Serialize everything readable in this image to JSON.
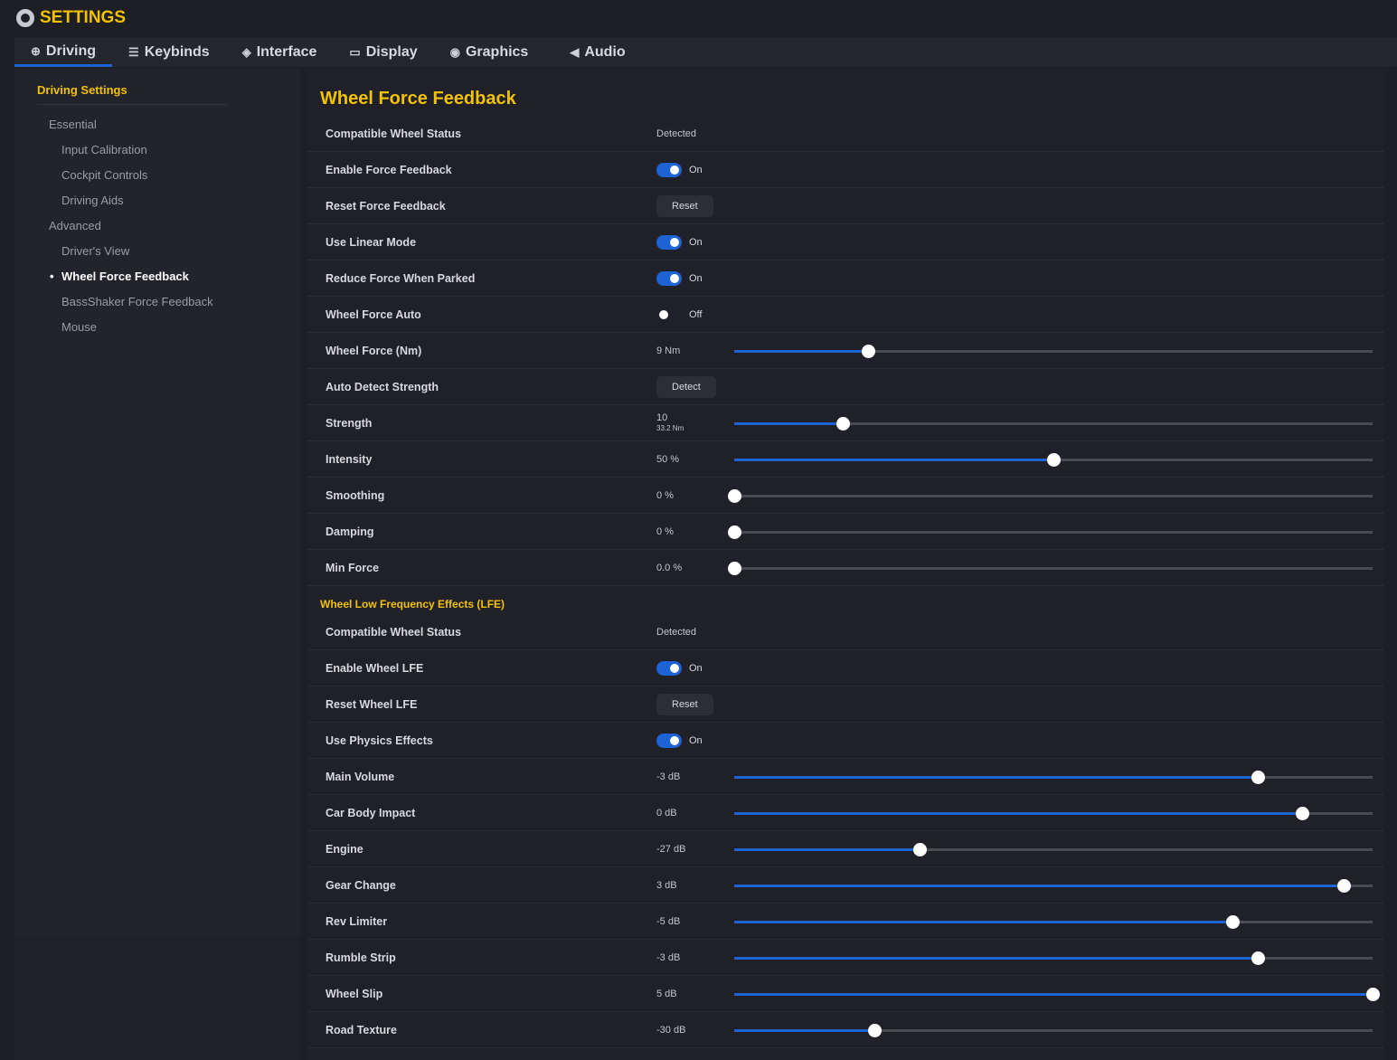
{
  "app": {
    "title": "SETTINGS",
    "icon": "gear-icon"
  },
  "tabs": [
    {
      "label": "Driving",
      "icon": "steering-wheel-icon",
      "active": true
    },
    {
      "label": "Keybinds",
      "icon": "sliders-icon"
    },
    {
      "label": "Interface",
      "icon": "layers-icon"
    },
    {
      "label": "Display",
      "icon": "monitor-icon"
    },
    {
      "label": "Graphics",
      "icon": "graphics-icon"
    },
    {
      "label": "Audio",
      "icon": "speaker-icon"
    }
  ],
  "sidebar": {
    "heading": "Driving Settings",
    "items": [
      {
        "label": "Essential",
        "level": 1
      },
      {
        "label": "Input Calibration",
        "level": 2
      },
      {
        "label": "Cockpit Controls",
        "level": 2
      },
      {
        "label": "Driving Aids",
        "level": 2
      },
      {
        "label": "Advanced",
        "level": 1
      },
      {
        "label": "Driver's View",
        "level": 2
      },
      {
        "label": "Wheel Force Feedback",
        "level": 2,
        "active": true
      },
      {
        "label": "BassShaker Force Feedback",
        "level": 2
      },
      {
        "label": "Mouse",
        "level": 2
      }
    ]
  },
  "colors": {
    "accent": "#f2c200",
    "slider_fill": "#1e63d6"
  },
  "sections": [
    {
      "title": "Wheel Force Feedback",
      "rows": [
        {
          "label": "Compatible Wheel Status",
          "type": "text",
          "value": "Detected"
        },
        {
          "label": "Enable Force Feedback",
          "type": "toggle",
          "on": true,
          "value": "On"
        },
        {
          "label": "Reset Force Feedback",
          "type": "button",
          "value": "Reset"
        },
        {
          "label": "Use Linear Mode",
          "type": "toggle",
          "on": true,
          "value": "On"
        },
        {
          "label": "Reduce Force When Parked",
          "type": "toggle",
          "on": true,
          "value": "On"
        },
        {
          "label": "Wheel Force Auto",
          "type": "toggle",
          "on": false,
          "value": "Off"
        },
        {
          "label": "Wheel Force (Nm)",
          "type": "slider",
          "value": "9 Nm",
          "level": 0.21
        },
        {
          "label": "Auto Detect Strength",
          "type": "button",
          "value": "Detect"
        },
        {
          "label": "Strength",
          "type": "slider",
          "value": "10",
          "subvalue": "33.2 Nm",
          "level": 0.17
        },
        {
          "label": "Intensity",
          "type": "slider",
          "value": "50 %",
          "level": 0.5
        },
        {
          "label": "Smoothing",
          "type": "slider",
          "value": "0 %",
          "level": 0
        },
        {
          "label": "Damping",
          "type": "slider",
          "value": "0 %",
          "level": 0
        },
        {
          "label": "Min Force",
          "type": "slider",
          "value": "0.0 %",
          "level": 0
        }
      ]
    },
    {
      "title": "Wheel Low Frequency Effects (LFE)",
      "rows": [
        {
          "label": "Compatible Wheel Status",
          "type": "text",
          "value": "Detected"
        },
        {
          "label": "Enable Wheel LFE",
          "type": "toggle",
          "on": true,
          "value": "On"
        },
        {
          "label": "Reset Wheel LFE",
          "type": "button",
          "value": "Reset"
        },
        {
          "label": "Use Physics Effects",
          "type": "toggle",
          "on": true,
          "value": "On"
        },
        {
          "label": "Main Volume",
          "type": "slider",
          "value": "-3 dB",
          "level": 0.82
        },
        {
          "label": "Car Body Impact",
          "type": "slider",
          "value": "0 dB",
          "level": 0.89
        },
        {
          "label": "Engine",
          "type": "slider",
          "value": "-27 dB",
          "level": 0.29
        },
        {
          "label": "Gear Change",
          "type": "slider",
          "value": "3 dB",
          "level": 0.955
        },
        {
          "label": "Rev Limiter",
          "type": "slider",
          "value": "-5 dB",
          "level": 0.78
        },
        {
          "label": "Rumble Strip",
          "type": "slider",
          "value": "-3 dB",
          "level": 0.82
        },
        {
          "label": "Wheel Slip",
          "type": "slider",
          "value": "5 dB",
          "level": 1.0
        },
        {
          "label": "Road Texture",
          "type": "slider",
          "value": "-30 dB",
          "level": 0.22
        }
      ]
    }
  ]
}
